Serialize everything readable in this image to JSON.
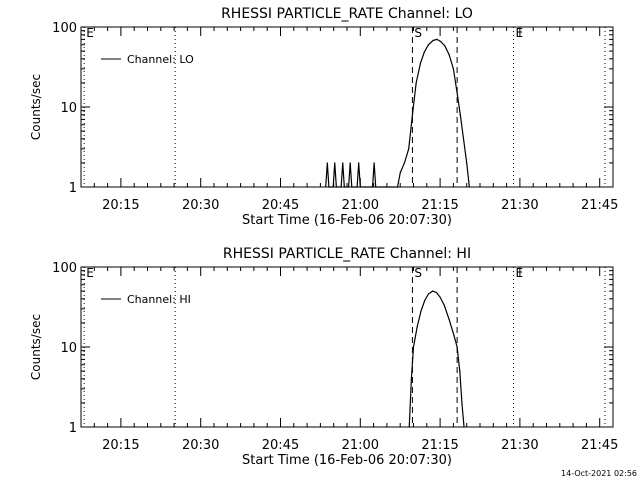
{
  "footer": {
    "timestamp": "14-Oct-2021 02:56"
  },
  "chart_data": [
    {
      "type": "line",
      "title": "RHESSI PARTICLE_RATE Channel: LO",
      "xlabel": "Start Time (16-Feb-06 20:07:30)",
      "ylabel": "Counts/sec",
      "x_unit": "minutes after 20:07:30",
      "xlim": [
        0,
        100
      ],
      "ylim": [
        1,
        100
      ],
      "yscale": "log",
      "x_ticks": [
        {
          "value": 7.5,
          "label": "20:15"
        },
        {
          "value": 22.5,
          "label": "20:30"
        },
        {
          "value": 37.5,
          "label": "20:45"
        },
        {
          "value": 52.5,
          "label": "21:00"
        },
        {
          "value": 67.5,
          "label": "21:15"
        },
        {
          "value": 82.5,
          "label": "21:30"
        },
        {
          "value": 97.5,
          "label": "21:45"
        }
      ],
      "y_ticks": [
        {
          "value": 1,
          "label": "1"
        },
        {
          "value": 10,
          "label": "10"
        },
        {
          "value": 100,
          "label": "100"
        }
      ],
      "legend": {
        "position": "top-left",
        "entries": [
          "Channel: LO"
        ]
      },
      "markers": [
        {
          "x": 0.6,
          "label": "E",
          "style": "dotted"
        },
        {
          "x": 17.7,
          "label": "",
          "style": "dotted"
        },
        {
          "x": 62.3,
          "label": "S",
          "style": "dashed"
        },
        {
          "x": 70.7,
          "label": "",
          "style": "dashed"
        },
        {
          "x": 81.3,
          "label": "E",
          "style": "dotted"
        },
        {
          "x": 98.5,
          "label": "",
          "style": "dotted"
        }
      ],
      "series": [
        {
          "name": "Channel: LO",
          "points": [
            [
              46.0,
              1.0
            ],
            [
              46.3,
              2.0
            ],
            [
              46.6,
              1.0
            ],
            [
              47.4,
              1.0
            ],
            [
              47.7,
              2.0
            ],
            [
              48.0,
              1.0
            ],
            [
              48.9,
              1.0
            ],
            [
              49.2,
              2.0
            ],
            [
              49.5,
              1.0
            ],
            [
              50.3,
              1.0
            ],
            [
              50.6,
              2.0
            ],
            [
              50.9,
              1.0
            ],
            [
              51.9,
              1.0
            ],
            [
              52.2,
              2.0
            ],
            [
              52.5,
              1.0
            ],
            [
              54.8,
              1.0
            ],
            [
              55.1,
              2.0
            ],
            [
              55.4,
              1.0
            ],
            [
              59.5,
              1.0
            ],
            [
              60.0,
              1.5
            ],
            [
              60.8,
              2.0
            ],
            [
              61.6,
              3.0
            ],
            [
              62.3,
              8.0
            ],
            [
              63.0,
              20.0
            ],
            [
              63.8,
              35.0
            ],
            [
              64.5,
              48.0
            ],
            [
              65.3,
              60.0
            ],
            [
              66.2,
              68.0
            ],
            [
              66.9,
              70.0
            ],
            [
              67.6,
              66.0
            ],
            [
              68.4,
              58.0
            ],
            [
              69.2,
              45.0
            ],
            [
              70.0,
              30.0
            ],
            [
              70.7,
              15.0
            ],
            [
              71.3,
              8.0
            ],
            [
              71.9,
              4.0
            ],
            [
              72.5,
              2.0
            ],
            [
              73.0,
              1.0
            ]
          ]
        }
      ]
    },
    {
      "type": "line",
      "title": "RHESSI PARTICLE_RATE Channel: HI",
      "xlabel": "Start Time (16-Feb-06 20:07:30)",
      "ylabel": "Counts/sec",
      "x_unit": "minutes after 20:07:30",
      "xlim": [
        0,
        100
      ],
      "ylim": [
        1,
        100
      ],
      "yscale": "log",
      "x_ticks": [
        {
          "value": 7.5,
          "label": "20:15"
        },
        {
          "value": 22.5,
          "label": "20:30"
        },
        {
          "value": 37.5,
          "label": "20:45"
        },
        {
          "value": 52.5,
          "label": "21:00"
        },
        {
          "value": 67.5,
          "label": "21:15"
        },
        {
          "value": 82.5,
          "label": "21:30"
        },
        {
          "value": 97.5,
          "label": "21:45"
        }
      ],
      "y_ticks": [
        {
          "value": 1,
          "label": "1"
        },
        {
          "value": 10,
          "label": "10"
        },
        {
          "value": 100,
          "label": "100"
        }
      ],
      "legend": {
        "position": "top-left",
        "entries": [
          "Channel: HI"
        ]
      },
      "markers": [
        {
          "x": 0.6,
          "label": "E",
          "style": "dotted"
        },
        {
          "x": 17.7,
          "label": "",
          "style": "dotted"
        },
        {
          "x": 62.3,
          "label": "S",
          "style": "dashed"
        },
        {
          "x": 70.7,
          "label": "",
          "style": "dashed"
        },
        {
          "x": 81.3,
          "label": "E",
          "style": "dotted"
        },
        {
          "x": 98.5,
          "label": "",
          "style": "dotted"
        }
      ],
      "series": [
        {
          "name": "Channel: HI",
          "points": [
            [
              61.7,
              1.0
            ],
            [
              62.1,
              4.0
            ],
            [
              62.5,
              10.0
            ],
            [
              63.2,
              18.0
            ],
            [
              63.9,
              28.0
            ],
            [
              64.6,
              38.0
            ],
            [
              65.3,
              46.0
            ],
            [
              66.1,
              50.0
            ],
            [
              66.8,
              48.0
            ],
            [
              67.5,
              42.0
            ],
            [
              68.3,
              33.0
            ],
            [
              69.2,
              22.0
            ],
            [
              70.1,
              14.0
            ],
            [
              70.7,
              10.0
            ],
            [
              71.2,
              5.0
            ],
            [
              71.6,
              2.0
            ],
            [
              72.0,
              1.0
            ]
          ]
        }
      ]
    }
  ]
}
